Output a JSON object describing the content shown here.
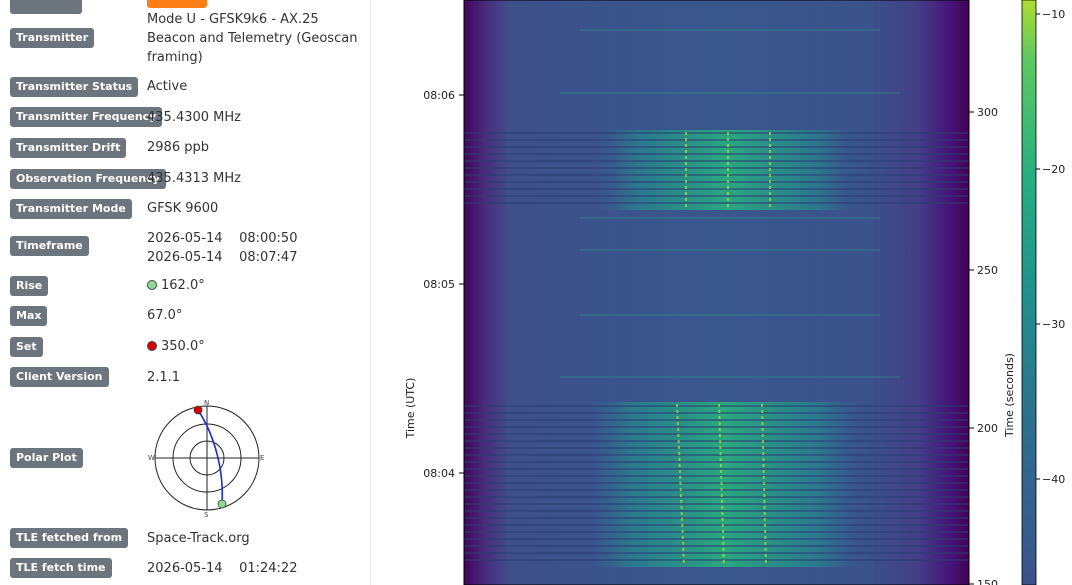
{
  "details": {
    "top_status": "",
    "transmitter_label": "Transmitter",
    "transmitter_lines": [
      "Mode U - GFSK9k6 - AX.25",
      "Beacon and Telemetry (Geoscan",
      "framing)"
    ],
    "transmitter_status_label": "Transmitter Status",
    "transmitter_status": "Active",
    "transmitter_frequency_label": "Transmitter Frequency",
    "transmitter_frequency": "435.4300 MHz",
    "transmitter_drift_label": "Transmitter Drift",
    "transmitter_drift": "2986 ppb",
    "observation_frequency_label": "Observation Frequency",
    "observation_frequency": "435.4313 MHz",
    "transmitter_mode_label": "Transmitter Mode",
    "transmitter_mode": "GFSK 9600",
    "timeframe_label": "Timeframe",
    "timeframe_start": "2026-05-14    08:00:50",
    "timeframe_end": "2026-05-14    08:07:47",
    "rise_label": "Rise",
    "rise": "162.0°",
    "max_label": "Max",
    "max": "67.0°",
    "set_label": "Set",
    "set": "350.0°",
    "client_version_label": "Client Version",
    "client_version": "2.1.1",
    "polar_plot_label": "Polar Plot",
    "polar": {
      "n": "N",
      "e": "E",
      "s": "S",
      "w": "W"
    },
    "tle_source_label": "TLE fetched from",
    "tle_source": "Space-Track.org",
    "tle_time_label": "TLE fetch time",
    "tle_time": "2026-05-14    01:24:22"
  },
  "colors": {
    "badge": "#6c757d",
    "badge_accent": "#fd7e14",
    "rise_dot": "#8fdc8f",
    "set_dot": "#d40000",
    "polar_path": "#1f2fbf"
  },
  "chart_data": {
    "type": "heatmap",
    "colormap": "viridis",
    "ylabel_left": "Time (UTC)",
    "ylabel_right": "Time (seconds)",
    "left_ticks": [
      "08:06",
      "08:05",
      "08:04"
    ],
    "right_ticks": [
      "300",
      "250",
      "200",
      "150"
    ],
    "colorbar_ticks": [
      "−10",
      "−20",
      "−30",
      "−40"
    ]
  }
}
